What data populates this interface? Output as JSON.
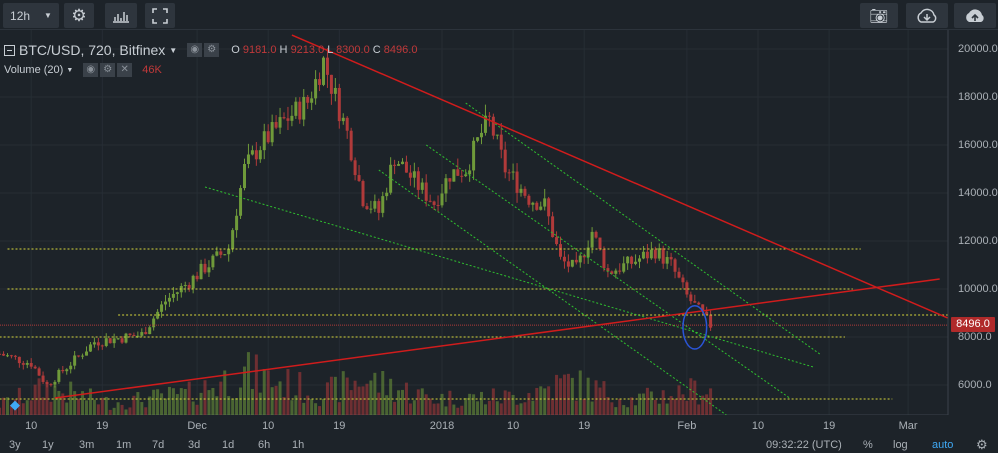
{
  "toolbar": {
    "interval": "12h",
    "buttons": [
      "settings-icon",
      "indicators-icon",
      "fullscreen-icon",
      "camera-icon",
      "cloud-download-icon",
      "cloud-upload-icon"
    ]
  },
  "legend": {
    "symbol": "BTC/USD, 720, Bitfinex",
    "o_label": "O",
    "o": "9181.0",
    "h_label": "H",
    "h": "9213.0",
    "l_label": "L",
    "l": "8300.0",
    "c_label": "C",
    "c": "8496.0",
    "volume": "Volume (20)",
    "volume_value": "46K"
  },
  "bottom": {
    "ranges": [
      "3y",
      "1y",
      "3m",
      "1m",
      "7d",
      "3d",
      "1d",
      "6h",
      "1h"
    ],
    "time": "09:32:22 (UTC)",
    "percent": "%",
    "log": "log",
    "auto": "auto"
  },
  "colors": {
    "up": "#6f9a3a",
    "down": "#b03a3a",
    "trend": "#d01c1c",
    "support": "#d6d63a",
    "channel": "#2fc02f",
    "ellipse": "#2a55d8",
    "price_tag": "#b02a2a",
    "auto": "#3fa9f5"
  },
  "chart_data": {
    "type": "candlestick",
    "title": "BTC/USD, 720, Bitfinex",
    "interval": "12h",
    "ylim": [
      4000,
      20600
    ],
    "y_ticks": [
      "20000.0",
      "18000.0",
      "16000.0",
      "14000.0",
      "12000.0",
      "10000.0",
      "8000.0",
      "6000.0"
    ],
    "y_tick_values": [
      20000,
      18000,
      16000,
      14000,
      12000,
      10000,
      8000,
      6000
    ],
    "x_ticks": [
      "10",
      "19",
      "Dec",
      "10",
      "19",
      "2018",
      "10",
      "19",
      "Feb",
      "10",
      "19",
      "Mar"
    ],
    "x_tick_dates": [
      "2017-11-10",
      "2017-11-19",
      "2017-12-01",
      "2017-12-10",
      "2017-12-19",
      "2018-01-01",
      "2018-01-10",
      "2018-01-19",
      "2018-02-01",
      "2018-02-10",
      "2018-02-19",
      "2018-03-01"
    ],
    "last_price": "8496.0",
    "close_path": [
      [
        "2017-11-06",
        7300
      ],
      [
        "2017-11-10",
        6900
      ],
      [
        "2017-11-12",
        6000
      ],
      [
        "2017-11-14",
        6600
      ],
      [
        "2017-11-18",
        7800
      ],
      [
        "2017-11-24",
        8100
      ],
      [
        "2017-11-27",
        9500
      ],
      [
        "2017-11-30",
        10300
      ],
      [
        "2017-12-02",
        10900
      ],
      [
        "2017-12-05",
        11700
      ],
      [
        "2017-12-07",
        15000
      ],
      [
        "2017-12-09",
        16000
      ],
      [
        "2017-12-12",
        17000
      ],
      [
        "2017-12-15",
        17800
      ],
      [
        "2017-12-17",
        19500
      ],
      [
        "2017-12-18",
        18500
      ],
      [
        "2017-12-20",
        16500
      ],
      [
        "2017-12-22",
        13800
      ],
      [
        "2017-12-24",
        13200
      ],
      [
        "2017-12-26",
        15500
      ],
      [
        "2017-12-29",
        14300
      ],
      [
        "2017-12-31",
        13600
      ],
      [
        "2018-01-02",
        14800
      ],
      [
        "2018-01-04",
        15000
      ],
      [
        "2018-01-06",
        16500
      ],
      [
        "2018-01-07",
        17000
      ],
      [
        "2018-01-09",
        15000
      ],
      [
        "2018-01-12",
        13800
      ],
      [
        "2018-01-14",
        13500
      ],
      [
        "2018-01-16",
        11200
      ],
      [
        "2018-01-18",
        10800
      ],
      [
        "2018-01-20",
        12400
      ],
      [
        "2018-01-22",
        10700
      ],
      [
        "2018-01-25",
        11100
      ],
      [
        "2018-01-28",
        11600
      ],
      [
        "2018-01-30",
        11000
      ],
      [
        "2018-02-01",
        9700
      ],
      [
        "2018-02-03",
        8900
      ],
      [
        "2018-02-04",
        8496
      ]
    ],
    "volume_path": [
      [
        "2017-11-06",
        0.35
      ],
      [
        "2017-11-12",
        0.9
      ],
      [
        "2017-11-20",
        0.4
      ],
      [
        "2017-11-30",
        0.7
      ],
      [
        "2017-12-07",
        1.4
      ],
      [
        "2017-12-17",
        0.7
      ],
      [
        "2017-12-22",
        1.2
      ],
      [
        "2017-12-31",
        0.55
      ],
      [
        "2018-01-10",
        0.6
      ],
      [
        "2018-01-17",
        1.1
      ],
      [
        "2018-01-25",
        0.5
      ],
      [
        "2018-02-04",
        0.9
      ]
    ],
    "drawings": {
      "trend_lines": [
        {
          "from": [
            "2017-12-13",
            20583
          ],
          "to": [
            "2018-03-06",
            8792
          ]
        },
        {
          "from": [
            "2017-11-13",
            5458
          ],
          "to": [
            "2018-03-05",
            10417
          ]
        }
      ],
      "horizontal_levels": [
        {
          "price": 11667,
          "from": "2017-11-07",
          "to": "2018-02-23"
        },
        {
          "price": 10000,
          "from": "2017-11-07",
          "to": "2018-02-22"
        },
        {
          "price": 8917,
          "from": "2017-11-21",
          "to": "2018-03-06"
        },
        {
          "price": 8000,
          "from": "2017-11-06",
          "to": "2018-02-21"
        },
        {
          "price": 5417,
          "from": "2017-11-06",
          "to": "2018-02-27"
        }
      ],
      "channel_lines": [
        {
          "from": [
            "2017-12-02",
            14250
          ],
          "to": [
            "2018-02-17",
            6750
          ]
        },
        {
          "from": [
            "2017-12-24",
            14958
          ],
          "to": [
            "2018-02-06",
            4750
          ]
        },
        {
          "from": [
            "2017-12-30",
            16000
          ],
          "to": [
            "2018-02-14",
            5458
          ]
        },
        {
          "from": [
            "2018-01-04",
            17750
          ],
          "to": [
            "2018-02-18",
            7250
          ]
        }
      ],
      "ellipse": {
        "center": [
          "2018-02-02",
          8400
        ],
        "days": 1.5,
        "price_radius": 900
      }
    }
  }
}
